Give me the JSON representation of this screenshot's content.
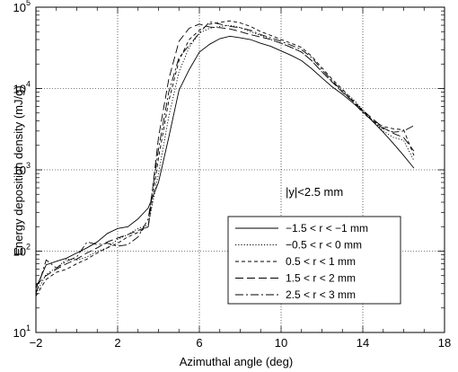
{
  "chart_data": {
    "type": "line",
    "xlabel": "Azimuthal angle (deg)",
    "ylabel": "Energy deposition density (mJ/g)",
    "xlim": [
      -2,
      18
    ],
    "ylim": [
      10,
      100000
    ],
    "yscale": "log",
    "grid": true,
    "x_ticks": [
      "−2",
      "2",
      "6",
      "10",
      "14",
      "18"
    ],
    "x_tick_values": [
      -2,
      2,
      6,
      10,
      14,
      18
    ],
    "y_ticks": [
      {
        "value": 10,
        "base": "10",
        "exp": "1"
      },
      {
        "value": 100,
        "base": "10",
        "exp": "2"
      },
      {
        "value": 1000,
        "base": "10",
        "exp": "3"
      },
      {
        "value": 10000,
        "base": "10",
        "exp": "4"
      },
      {
        "value": 100000,
        "base": "10",
        "exp": "5"
      }
    ],
    "annotation": "|y|<2.5 mm",
    "legend_position": "lower-right",
    "series": [
      {
        "name": "−1.5 < r < −1 mm",
        "dash": "solid",
        "x": [
          -2,
          -1.5,
          -1,
          -0.5,
          0,
          0.5,
          1,
          1.5,
          2,
          2.5,
          3,
          3.5,
          4,
          4.5,
          5,
          5.5,
          6,
          6.5,
          7,
          7.5,
          8,
          8.5,
          9,
          9.5,
          10,
          10.5,
          11,
          11.5,
          12,
          12.5,
          13,
          13.5,
          14,
          14.5,
          15,
          15.5,
          16,
          16.5
        ],
        "values": [
          35,
          68,
          75,
          82,
          95,
          110,
          130,
          165,
          190,
          200,
          250,
          340,
          700,
          2500,
          9500,
          17000,
          28000,
          35000,
          41000,
          44000,
          42000,
          40000,
          36000,
          33000,
          29000,
          25500,
          22000,
          17500,
          13500,
          10500,
          8500,
          6700,
          5200,
          3900,
          2900,
          2100,
          1500,
          1050
        ]
      },
      {
        "name": "−0.5 < r < 0 mm",
        "dash": "dot",
        "x": [
          -2,
          -1.5,
          -1,
          -0.5,
          0,
          0.5,
          1,
          1.5,
          2,
          2.5,
          3,
          3.5,
          4,
          4.5,
          5,
          5.5,
          6,
          6.5,
          7,
          7.5,
          8,
          8.5,
          9,
          9.5,
          10,
          10.5,
          11,
          11.5,
          12,
          12.5,
          13,
          13.5,
          14,
          14.5,
          15,
          15.5,
          16,
          16.5
        ],
        "values": [
          30,
          52,
          62,
          80,
          78,
          85,
          100,
          110,
          140,
          160,
          190,
          210,
          900,
          4500,
          16000,
          32000,
          48000,
          55000,
          58000,
          60000,
          56000,
          50000,
          45000,
          40000,
          36000,
          32000,
          28000,
          22000,
          16000,
          12000,
          9500,
          7500,
          5500,
          4000,
          3000,
          2500,
          2300,
          1300
        ]
      },
      {
        "name": "0.5 < r < 1 mm",
        "dash": "dash-short",
        "x": [
          -2,
          -1.5,
          -1,
          -0.5,
          0,
          0.5,
          1,
          1.5,
          2,
          2.5,
          3,
          3.5,
          4,
          4.5,
          5,
          5.5,
          6,
          6.5,
          7,
          7.5,
          8,
          8.5,
          9,
          9.5,
          10,
          10.5,
          11,
          11.5,
          12,
          12.5,
          13,
          13.5,
          14,
          14.5,
          15,
          15.5,
          16,
          16.5
        ],
        "values": [
          28,
          45,
          55,
          60,
          70,
          80,
          95,
          110,
          125,
          150,
          170,
          200,
          1400,
          7000,
          22000,
          40000,
          52000,
          62000,
          65000,
          68000,
          64000,
          58000,
          50000,
          45000,
          40000,
          36000,
          32000,
          25000,
          18000,
          13000,
          9800,
          7200,
          5300,
          4000,
          3400,
          3200,
          3100,
          1500
        ]
      },
      {
        "name": "1.5 < r < 2 mm",
        "dash": "dash-long",
        "x": [
          -2,
          -1.5,
          -1,
          -0.5,
          0,
          0.5,
          1,
          1.5,
          2,
          2.5,
          3,
          3.5,
          4,
          4.5,
          5,
          5.5,
          6,
          6.5,
          7,
          7.5,
          8,
          8.5,
          9,
          9.5,
          10,
          10.5,
          11,
          11.5,
          12,
          12.5,
          13,
          13.5,
          14,
          14.5,
          15,
          15.5,
          16,
          16.5
        ],
        "values": [
          38,
          50,
          60,
          70,
          80,
          95,
          110,
          130,
          145,
          160,
          180,
          200,
          2500,
          13000,
          38000,
          55000,
          62000,
          57000,
          56000,
          54000,
          50000,
          46000,
          43000,
          40000,
          36000,
          32000,
          28000,
          22000,
          16000,
          12000,
          9000,
          7000,
          5400,
          4200,
          3300,
          2800,
          2500,
          1700
        ]
      },
      {
        "name": "2.5 < r < 3 mm",
        "dash": "dash-dot",
        "x": [
          -2,
          -1.5,
          -1,
          -0.5,
          0,
          0.5,
          1,
          1.5,
          2,
          2.5,
          3,
          3.5,
          4,
          4.5,
          5,
          5.5,
          6,
          6.5,
          7,
          7.5,
          8,
          8.5,
          9,
          9.5,
          10,
          10.5,
          11,
          11.5,
          12,
          12.5,
          13,
          13.5,
          14,
          14.5,
          15,
          15.5,
          16,
          16.5
        ],
        "values": [
          30,
          78,
          62,
          75,
          85,
          130,
          120,
          125,
          115,
          120,
          150,
          250,
          1800,
          9000,
          24000,
          34000,
          48000,
          66000,
          62000,
          58000,
          56000,
          52000,
          46000,
          42000,
          38000,
          34000,
          30000,
          24000,
          17000,
          12500,
          9200,
          7000,
          5000,
          4000,
          3200,
          2900,
          3000,
          3500
        ]
      }
    ]
  }
}
